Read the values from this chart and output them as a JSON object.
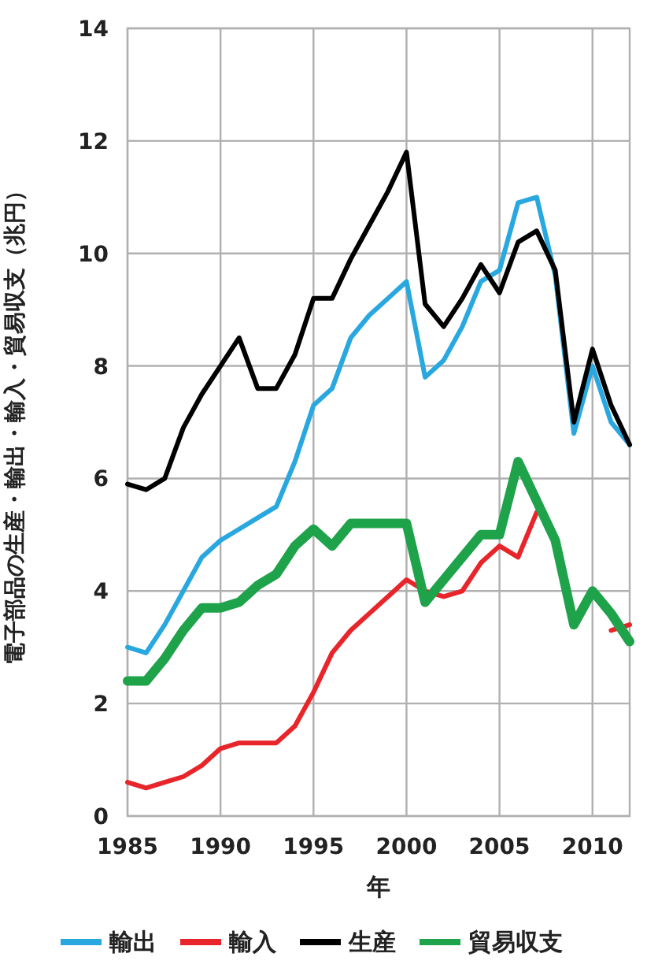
{
  "chart_data": {
    "type": "line",
    "xlabel": "年",
    "ylabel": "電子部品の生産・輸出・輸入・貿易収支（兆円）",
    "x": [
      1985,
      1986,
      1987,
      1988,
      1989,
      1990,
      1991,
      1992,
      1993,
      1994,
      1995,
      1996,
      1997,
      1998,
      1999,
      2000,
      2001,
      2002,
      2003,
      2004,
      2005,
      2006,
      2007,
      2008,
      2009,
      2010,
      2011,
      2012
    ],
    "series": [
      {
        "name": "輸出",
        "color": "#29a8e0",
        "values": [
          3.0,
          2.9,
          3.4,
          4.0,
          4.6,
          4.9,
          5.1,
          5.3,
          5.5,
          6.3,
          7.3,
          7.6,
          8.5,
          8.9,
          9.2,
          9.5,
          7.8,
          8.1,
          8.7,
          9.5,
          9.7,
          10.9,
          11.0,
          9.6,
          6.8,
          8.0,
          7.0,
          6.6
        ]
      },
      {
        "name": "輸入",
        "color": "#e8252a",
        "values": [
          0.6,
          0.5,
          0.6,
          0.7,
          0.9,
          1.2,
          1.3,
          1.3,
          1.3,
          1.6,
          2.2,
          2.9,
          3.3,
          3.6,
          3.9,
          4.2,
          4.0,
          3.9,
          4.0,
          4.5,
          4.8,
          4.6,
          5.4,
          null,
          null,
          null,
          3.3,
          3.4
        ]
      },
      {
        "name": "生産",
        "color": "#000000",
        "values": [
          5.9,
          5.8,
          6.0,
          6.9,
          7.5,
          8.0,
          8.5,
          7.6,
          7.6,
          8.2,
          9.2,
          9.2,
          9.9,
          10.5,
          11.1,
          11.8,
          9.1,
          8.7,
          9.2,
          9.8,
          9.3,
          10.2,
          10.4,
          9.7,
          7.0,
          8.3,
          7.3,
          6.6
        ]
      },
      {
        "name": "貿易収支",
        "color": "#1ea24a",
        "values": [
          2.4,
          2.4,
          2.8,
          3.3,
          3.7,
          3.7,
          3.8,
          4.1,
          4.3,
          4.8,
          5.1,
          4.8,
          5.2,
          5.2,
          5.2,
          5.2,
          3.8,
          4.2,
          4.6,
          5.0,
          5.0,
          6.3,
          5.6,
          4.9,
          3.4,
          4.0,
          3.6,
          3.1
        ]
      }
    ],
    "xlim": [
      1985,
      2012
    ],
    "ylim": [
      0,
      14
    ],
    "xticks": [
      1985,
      1990,
      1995,
      2000,
      2005,
      2010
    ],
    "yticks": [
      0,
      2,
      4,
      6,
      8,
      10,
      12,
      14
    ],
    "grid": true,
    "legend": "bottom",
    "marker": "none",
    "line_style": "solid"
  }
}
